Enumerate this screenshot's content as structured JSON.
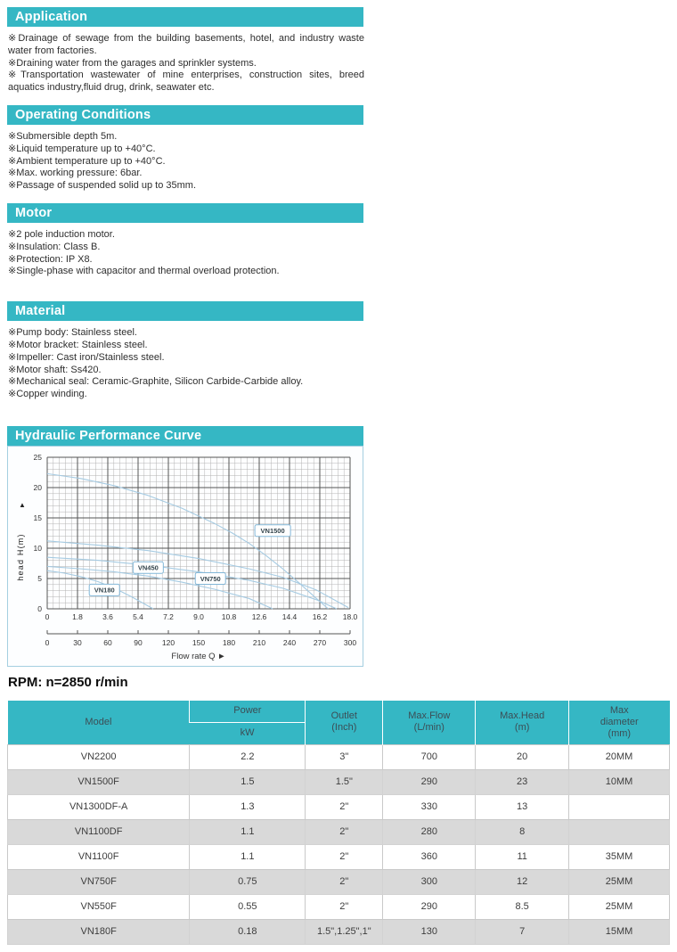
{
  "colors": {
    "teal": "#35b7c4",
    "section_title_text": "#ffffff",
    "body_text": "#2e2e2e",
    "panel_border": "#a5cfe0",
    "grid_minor": "#b3b3b3",
    "grid_major": "#555555",
    "curve": "#a6cbe2",
    "label_box_border": "#82b7d8",
    "label_text": "#33444c",
    "axis_text": "#333333",
    "table_header_text": "#3c4d55",
    "table_row_alt": "#d9d9d9"
  },
  "sections": [
    {
      "title": "Application",
      "lines": [
        "※Drainage of sewage from the building basements, hotel, and industry waste water from factories.",
        "※Draining water from the garages and sprinkler systems.",
        "※Transportation wastewater of mine enterprises, construction sites, breed aquatics industry,fluid drug, drink, seawater etc."
      ]
    },
    {
      "title": "Operating Conditions",
      "lines": [
        "※Submersible depth 5m.",
        "※Liquid temperature up to +40°C.",
        "※Ambient temperature up to +40°C.",
        "※Max. working pressure: 6bar.",
        "※Passage of suspended solid up to 35mm."
      ]
    },
    {
      "title": "Motor",
      "lines": [
        "※2 pole induction motor.",
        "※Insulation: Class B.",
        "※Protection: IP X8.",
        "※Single-phase with capacitor and thermal overload protection."
      ]
    },
    {
      "title": "Material",
      "lines": [
        "※Pump body: Stainless steel.",
        "※Motor bracket: Stainless steel.",
        "※Impeller: Cast iron/Stainless steel.",
        "※Motor shaft: Ss420.",
        "※Mechanical seal: Ceramic-Graphite, Silicon Carbide-Carbide alloy.",
        "※Copper winding."
      ]
    }
  ],
  "chart_section_title": "Hydraulic Performance Curve",
  "chart_data": {
    "type": "line",
    "title": "Hydraulic Performance Curve",
    "ylabel": "head H(m)",
    "ylabel_arrow": "▲",
    "xlabel": "Flow rate Q  ►",
    "xlim": [
      0,
      18
    ],
    "ylim": [
      0,
      25
    ],
    "grid": "minor every 0.36 x / 1 y, major every 1.8 x / 5 y",
    "legend_position": "inline curve labels",
    "y_ticks": [
      "0",
      "5",
      "10",
      "15",
      "20",
      "25"
    ],
    "x_axis_m3h": {
      "max": 18,
      "tick_labels": [
        "0",
        "1.8",
        "3.6",
        "5.4",
        "7.2",
        "9.0",
        "10.8",
        "12.6",
        "14.4",
        "16.2",
        "18.0"
      ]
    },
    "x_axis_lmin": {
      "max": 300,
      "tick_labels": [
        "0",
        "30",
        "60",
        "90",
        "120",
        "150",
        "180",
        "210",
        "240",
        "270",
        "300"
      ]
    },
    "series": [
      {
        "name": "VN1500",
        "x": [
          0,
          2,
          4,
          6,
          8,
          10,
          11,
          12,
          13,
          14,
          15,
          16,
          16.7
        ],
        "y": [
          22.3,
          21.5,
          20.3,
          18.7,
          16.6,
          14.0,
          12.5,
          10.8,
          8.8,
          6.6,
          4.2,
          1.7,
          0
        ],
        "label_pos": {
          "x": 13.4,
          "y": 12.9
        }
      },
      {
        "name": "VN750",
        "x": [
          0,
          3,
          6,
          9,
          12,
          14,
          16,
          17.9
        ],
        "y": [
          11.2,
          10.5,
          9.6,
          8.3,
          6.6,
          5.2,
          3.1,
          0.2
        ],
        "label_pos": {
          "x": 9.7,
          "y": 5.0
        }
      },
      {
        "name": "unlabeled",
        "x": [
          0,
          3,
          6,
          9,
          12,
          14,
          16,
          17.2
        ],
        "y": [
          8.5,
          8.0,
          7.2,
          6.1,
          4.7,
          3.4,
          1.5,
          0
        ],
        "label_pos": null
      },
      {
        "name": "VN450",
        "x": [
          0,
          2,
          4,
          6,
          8,
          10,
          12,
          13.4
        ],
        "y": [
          7.0,
          6.6,
          6.1,
          5.4,
          4.4,
          3.2,
          1.7,
          0
        ],
        "label_pos": {
          "x": 6.0,
          "y": 6.8
        }
      },
      {
        "name": "VN180",
        "x": [
          0,
          1,
          2,
          3,
          4,
          5,
          6.3
        ],
        "y": [
          6.3,
          5.9,
          5.3,
          4.5,
          3.4,
          2.0,
          0
        ],
        "label_pos": {
          "x": 3.4,
          "y": 3.1
        }
      }
    ]
  },
  "rpm_note": "RPM: n=2850 r/min",
  "table": {
    "headers": {
      "model": "Model",
      "power": "Power",
      "power_unit": "kW",
      "outlet": "Outlet\n(Inch)",
      "max_flow": "Max.Flow\n(L/min)",
      "max_head": "Max.Head\n(m)",
      "max_diameter": "Max\ndiameter\n(mm)"
    },
    "rows": [
      {
        "model": "VN2200",
        "power_kw": "2.2",
        "outlet": "3\"",
        "max_flow": "700",
        "max_head": "20",
        "max_diameter": "20MM"
      },
      {
        "model": "VN1500F",
        "power_kw": "1.5",
        "outlet": "1.5\"",
        "max_flow": "290",
        "max_head": "23",
        "max_diameter": "10MM"
      },
      {
        "model": "VN1300DF-A",
        "power_kw": "1.3",
        "outlet": "2\"",
        "max_flow": "330",
        "max_head": "13",
        "max_diameter": ""
      },
      {
        "model": "VN1100DF",
        "power_kw": "1.1",
        "outlet": "2\"",
        "max_flow": "280",
        "max_head": "8",
        "max_diameter": ""
      },
      {
        "model": "VN1100F",
        "power_kw": "1.1",
        "outlet": "2\"",
        "max_flow": "360",
        "max_head": "11",
        "max_diameter": "35MM"
      },
      {
        "model": "VN750F",
        "power_kw": "0.75",
        "outlet": "2\"",
        "max_flow": "300",
        "max_head": "12",
        "max_diameter": "25MM"
      },
      {
        "model": "VN550F",
        "power_kw": "0.55",
        "outlet": "2\"",
        "max_flow": "290",
        "max_head": "8.5",
        "max_diameter": "25MM"
      },
      {
        "model": "VN180F",
        "power_kw": "0.18",
        "outlet": "1.5\",1.25\",1\"",
        "max_flow": "130",
        "max_head": "7",
        "max_diameter": "15MM"
      }
    ]
  }
}
